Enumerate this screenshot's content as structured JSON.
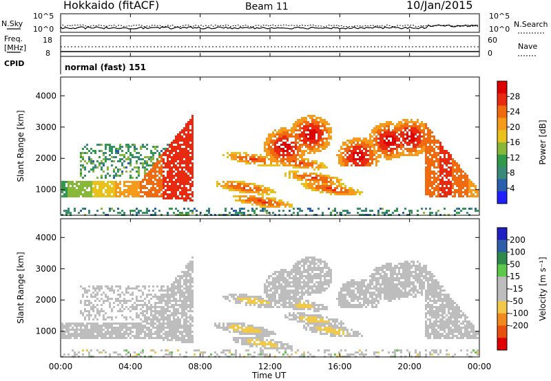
{
  "header": {
    "station": "Hokkaido (fitACF)",
    "beam": "Beam 11",
    "date": "10/Jan/2015"
  },
  "noise_panel": {
    "left_label": "N.Sky",
    "right_label": "N.Search",
    "ticks": [
      "10^5",
      "10^0"
    ]
  },
  "freq_panel": {
    "left_label_1": "Freq.",
    "left_label_2": "[MHz]",
    "left_ticks": [
      "18",
      "8"
    ],
    "right_label": "Nave",
    "right_ticks": [
      "60",
      "0"
    ],
    "cpid_label": "CPID",
    "mode_text": "normal (fast) 151"
  },
  "chart_data": [
    {
      "type": "heatmap",
      "title": "",
      "xlabel": "Time UT",
      "ylabel": "Slant Range [km]",
      "x_ticks": [
        "00:00",
        "04:00",
        "08:00",
        "12:00",
        "16:00",
        "20:00",
        "00:00"
      ],
      "xlim_hours": [
        0,
        24
      ],
      "y_ticks": [
        1000,
        2000,
        3000,
        4000
      ],
      "ylim_km": [
        180,
        4600
      ],
      "colorbar": {
        "label": "Power [dB]",
        "ticks": [
          4,
          8,
          12,
          16,
          20,
          24,
          28
        ],
        "range": [
          0,
          32
        ],
        "colors": [
          "#1f1fff",
          "#2a5fb0",
          "#3a8a7a",
          "#2f9a4a",
          "#88b83a",
          "#e8c21a",
          "#f59a1a",
          "#f06a10",
          "#e82a10",
          "#dd0000"
        ]
      }
    },
    {
      "type": "heatmap",
      "title": "",
      "xlabel": "Time UT",
      "ylabel": "Slant Range [km]",
      "x_ticks": [
        "00:00",
        "04:00",
        "08:00",
        "12:00",
        "16:00",
        "20:00",
        "00:00"
      ],
      "xlim_hours": [
        0,
        24
      ],
      "y_ticks": [
        1000,
        2000,
        3000,
        4000
      ],
      "ylim_km": [
        180,
        4600
      ],
      "colorbar": {
        "label": "Velocity [m s⁻¹]",
        "ticks": [
          200,
          100,
          50,
          15,
          -15,
          -50,
          -100,
          -200
        ],
        "range": [
          -250,
          250
        ],
        "colors": [
          "#2020c0",
          "#2e5ea8",
          "#2e8a4a",
          "#5cc84a",
          "#bdbdbd",
          "#bdbdbd",
          "#f2c84a",
          "#f08a20",
          "#e85010",
          "#e00000"
        ]
      }
    }
  ]
}
